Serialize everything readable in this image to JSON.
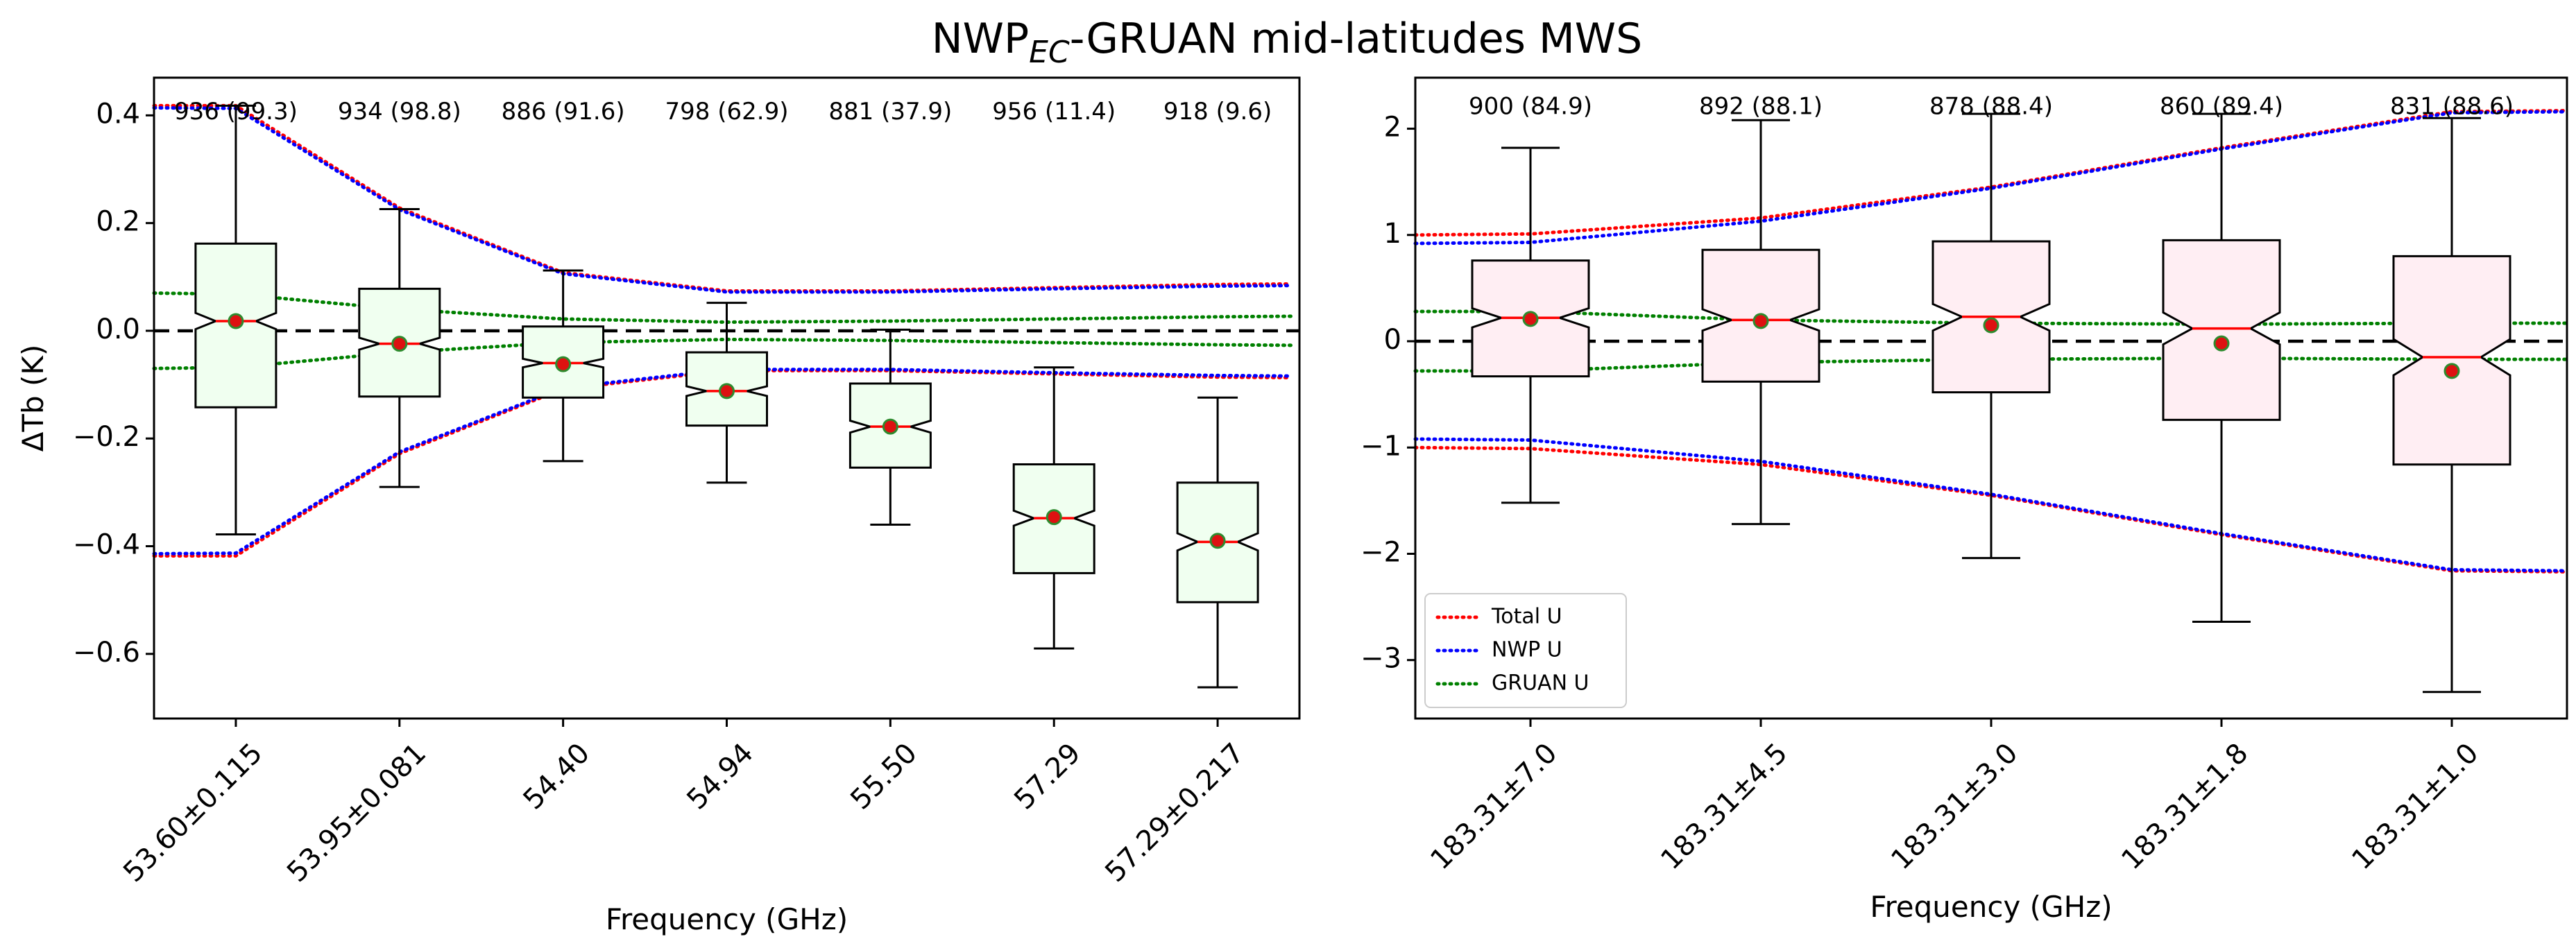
{
  "figure": {
    "title_main": "NWP",
    "title_sub": "EC",
    "title_rest": "-GRUAN mid-latitudes MWS"
  },
  "colors": {
    "box_left": "#f0fff0",
    "box_right": "#ffeef3",
    "median": "#ff0000",
    "mean_fill": "#dd1111",
    "mean_edge": "#2e8b2e",
    "total_u": "#ff0000",
    "nwp_u": "#0000ff",
    "gruan_u": "#008000",
    "zero_line": "#000000"
  },
  "chart_data": [
    {
      "type": "boxplot",
      "name": "temperature-channels",
      "xlabel": "Frequency (GHz)",
      "ylabel": "ΔTb (K)",
      "ylim": [
        -0.72,
        0.47
      ],
      "yticks": [
        0.4,
        0.2,
        0.0,
        -0.2,
        -0.4,
        -0.6
      ],
      "ytick_labels": [
        "0.4",
        "0.2",
        "0.0",
        "−0.2",
        "−0.4",
        "−0.6"
      ],
      "categories": [
        "53.60±0.115",
        "53.95±0.081",
        "54.40",
        "54.94",
        "55.50",
        "57.29",
        "57.29±0.217"
      ],
      "annotations": [
        "936 (99.3)",
        "934 (98.8)",
        "886 (91.6)",
        "798 (62.9)",
        "881 (37.9)",
        "956 (11.4)",
        "918 (9.6)"
      ],
      "annotation_y": 0.405,
      "boxes": [
        {
          "whislo": -0.378,
          "q1": -0.142,
          "med": 0.018,
          "q3": 0.162,
          "whishi": 0.418,
          "mean": 0.018,
          "notch_lo": 0.003,
          "notch_hi": 0.033
        },
        {
          "whislo": -0.29,
          "q1": -0.122,
          "med": -0.024,
          "q3": 0.078,
          "whishi": 0.226,
          "mean": -0.024,
          "notch_lo": -0.035,
          "notch_hi": -0.013
        },
        {
          "whislo": -0.242,
          "q1": -0.124,
          "med": -0.06,
          "q3": 0.008,
          "whishi": 0.112,
          "mean": -0.062,
          "notch_lo": -0.068,
          "notch_hi": -0.052
        },
        {
          "whislo": -0.282,
          "q1": -0.176,
          "med": -0.112,
          "q3": -0.04,
          "whishi": 0.052,
          "mean": -0.112,
          "notch_lo": -0.121,
          "notch_hi": -0.103
        },
        {
          "whislo": -0.36,
          "q1": -0.254,
          "med": -0.178,
          "q3": -0.098,
          "whishi": 0.002,
          "mean": -0.178,
          "notch_lo": -0.189,
          "notch_hi": -0.167
        },
        {
          "whislo": -0.59,
          "q1": -0.45,
          "med": -0.348,
          "q3": -0.248,
          "whishi": -0.068,
          "mean": -0.346,
          "notch_lo": -0.362,
          "notch_hi": -0.334
        },
        {
          "whislo": -0.662,
          "q1": -0.504,
          "med": -0.392,
          "q3": -0.282,
          "whishi": -0.124,
          "mean": -0.39,
          "notch_lo": -0.408,
          "notch_hi": -0.376
        }
      ],
      "lines": [
        {
          "name": "total-u-upper",
          "style": "total",
          "x": [
            -0.5,
            0,
            1,
            2,
            3,
            4,
            5,
            6,
            6.45
          ],
          "y": [
            0.418,
            0.418,
            0.228,
            0.108,
            0.074,
            0.074,
            0.08,
            0.086,
            0.087
          ]
        },
        {
          "name": "total-u-lower",
          "style": "total",
          "x": [
            -0.5,
            0,
            1,
            2,
            3,
            4,
            5,
            6,
            6.45
          ],
          "y": [
            -0.418,
            -0.418,
            -0.228,
            -0.108,
            -0.074,
            -0.074,
            -0.08,
            -0.086,
            -0.087
          ]
        },
        {
          "name": "nwp-u-upper",
          "style": "nwp",
          "x": [
            -0.5,
            0,
            1,
            2,
            3,
            4,
            5,
            6,
            6.45
          ],
          "y": [
            0.414,
            0.413,
            0.225,
            0.106,
            0.072,
            0.072,
            0.078,
            0.083,
            0.084
          ]
        },
        {
          "name": "nwp-u-lower",
          "style": "nwp",
          "x": [
            -0.5,
            0,
            1,
            2,
            3,
            4,
            5,
            6,
            6.45
          ],
          "y": [
            -0.414,
            -0.413,
            -0.225,
            -0.106,
            -0.072,
            -0.072,
            -0.078,
            -0.083,
            -0.084
          ]
        },
        {
          "name": "gruan-u-upper",
          "style": "gruan",
          "x": [
            -0.5,
            0,
            1,
            2,
            3,
            4,
            5,
            6,
            6.45
          ],
          "y": [
            0.07,
            0.068,
            0.04,
            0.022,
            0.016,
            0.018,
            0.022,
            0.026,
            0.027
          ]
        },
        {
          "name": "gruan-u-lower",
          "style": "gruan",
          "x": [
            -0.5,
            0,
            1,
            2,
            3,
            4,
            5,
            6,
            6.45
          ],
          "y": [
            -0.07,
            -0.068,
            -0.04,
            -0.022,
            -0.016,
            -0.018,
            -0.022,
            -0.026,
            -0.027
          ]
        }
      ]
    },
    {
      "type": "boxplot",
      "name": "humidity-channels",
      "xlabel": "Frequency (GHz)",
      "ylabel": "",
      "ylim": [
        -3.55,
        2.48
      ],
      "yticks": [
        2,
        1,
        0,
        -1,
        -2,
        -3
      ],
      "ytick_labels": [
        "2",
        "1",
        "0",
        "−1",
        "−2",
        "−3"
      ],
      "categories": [
        "183.31±7.0",
        "183.31±4.5",
        "183.31±3.0",
        "183.31±1.8",
        "183.31±1.0"
      ],
      "annotations": [
        "900 (84.9)",
        "892 (88.1)",
        "878 (88.4)",
        "860 (89.4)",
        "831 (88.6)"
      ],
      "annotation_y": 2.2,
      "boxes": [
        {
          "whislo": -1.52,
          "q1": -0.33,
          "med": 0.22,
          "q3": 0.76,
          "whishi": 1.82,
          "mean": 0.21,
          "notch_lo": 0.13,
          "notch_hi": 0.31
        },
        {
          "whislo": -1.72,
          "q1": -0.38,
          "med": 0.2,
          "q3": 0.86,
          "whishi": 2.08,
          "mean": 0.19,
          "notch_lo": 0.1,
          "notch_hi": 0.3
        },
        {
          "whislo": -2.04,
          "q1": -0.48,
          "med": 0.23,
          "q3": 0.94,
          "whishi": 2.14,
          "mean": 0.15,
          "notch_lo": 0.1,
          "notch_hi": 0.35
        },
        {
          "whislo": -2.64,
          "q1": -0.74,
          "med": 0.12,
          "q3": 0.95,
          "whishi": 2.14,
          "mean": -0.02,
          "notch_lo": -0.03,
          "notch_hi": 0.27
        },
        {
          "whislo": -3.3,
          "q1": -1.16,
          "med": -0.15,
          "q3": 0.8,
          "whishi": 2.1,
          "mean": -0.28,
          "notch_lo": -0.32,
          "notch_hi": 0.02
        }
      ],
      "lines": [
        {
          "name": "total-u-upper",
          "style": "total",
          "x": [
            -0.5,
            0,
            1,
            2,
            3,
            4,
            4.5
          ],
          "y": [
            1.0,
            1.01,
            1.16,
            1.45,
            1.82,
            2.16,
            2.17
          ]
        },
        {
          "name": "total-u-lower",
          "style": "total",
          "x": [
            -0.5,
            0,
            1,
            2,
            3,
            4,
            4.5
          ],
          "y": [
            -1.0,
            -1.01,
            -1.16,
            -1.45,
            -1.82,
            -2.16,
            -2.17
          ]
        },
        {
          "name": "nwp-u-upper",
          "style": "nwp",
          "x": [
            -0.5,
            0,
            1,
            2,
            3,
            4,
            4.5
          ],
          "y": [
            0.92,
            0.93,
            1.13,
            1.44,
            1.81,
            2.15,
            2.16
          ]
        },
        {
          "name": "nwp-u-lower",
          "style": "nwp",
          "x": [
            -0.5,
            0,
            1,
            2,
            3,
            4,
            4.5
          ],
          "y": [
            -0.92,
            -0.93,
            -1.13,
            -1.44,
            -1.81,
            -2.15,
            -2.16
          ]
        },
        {
          "name": "gruan-u-upper",
          "style": "gruan",
          "x": [
            -0.5,
            0,
            1,
            2,
            3,
            4,
            4.5
          ],
          "y": [
            0.28,
            0.28,
            0.2,
            0.17,
            0.16,
            0.17,
            0.17
          ]
        },
        {
          "name": "gruan-u-lower",
          "style": "gruan",
          "x": [
            -0.5,
            0,
            1,
            2,
            3,
            4,
            4.5
          ],
          "y": [
            -0.28,
            -0.28,
            -0.2,
            -0.17,
            -0.16,
            -0.17,
            -0.17
          ]
        }
      ],
      "legend": {
        "location": "lower-left",
        "entries": [
          {
            "label": "Total U",
            "style": "total"
          },
          {
            "label": "NWP U",
            "style": "nwp"
          },
          {
            "label": "GRUAN U",
            "style": "gruan"
          }
        ]
      }
    }
  ]
}
